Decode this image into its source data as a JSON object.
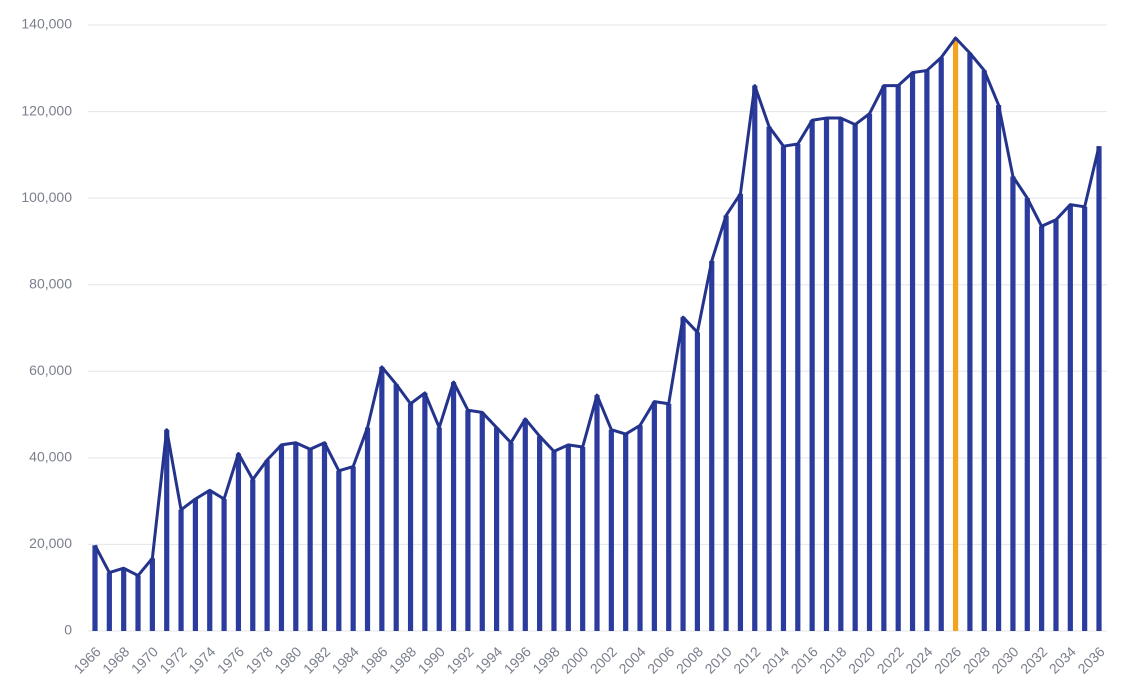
{
  "chart_data": {
    "type": "bar",
    "categories": [
      "1966",
      null,
      "1968",
      null,
      "1970",
      null,
      "1972",
      null,
      "1974",
      null,
      "1976",
      null,
      "1978",
      null,
      "1980",
      null,
      "1982",
      null,
      "1984",
      null,
      "1986",
      null,
      "1988",
      null,
      "1990",
      null,
      "1992",
      null,
      "1994",
      null,
      "1996",
      null,
      "1998",
      null,
      "2000",
      null,
      "2002",
      null,
      "2004",
      null,
      "2006",
      null,
      "2008",
      null,
      "2010",
      null,
      "2012",
      null,
      "2014",
      null,
      "2016",
      null,
      "2018",
      null,
      "2020",
      null,
      "2022",
      null,
      "2024",
      null,
      "2026",
      null,
      "2028",
      null,
      "2030",
      null,
      "2032",
      null,
      "2034",
      null,
      "2036"
    ],
    "values": [
      19800,
      13500,
      14500,
      12800,
      16800,
      46500,
      28000,
      30500,
      32500,
      30500,
      41000,
      35000,
      39500,
      43000,
      43500,
      42000,
      43500,
      37000,
      38000,
      47000,
      61000,
      57000,
      52500,
      55000,
      47000,
      57500,
      51000,
      50500,
      47000,
      43500,
      49000,
      45000,
      41500,
      43000,
      42500,
      54500,
      46500,
      45500,
      47500,
      53000,
      52500,
      72500,
      69000,
      85500,
      96000,
      101000,
      126000,
      116500,
      112000,
      112500,
      118000,
      118500,
      118500,
      117000,
      119500,
      126000,
      126000,
      129000,
      129500,
      132500,
      137000,
      133500,
      129500,
      121500,
      105000,
      100000,
      93500,
      95000,
      98500,
      98000,
      112000
    ],
    "color": "#2b3b9e",
    "line": true,
    "line_color": "#24348c",
    "highlight": {
      "category": "2026",
      "color": "#f5a21f"
    },
    "ylim": [
      0,
      140000
    ],
    "yticks": [
      0,
      {
        "value": 20000,
        "label": "20,000"
      },
      {
        "value": 40000,
        "label": "40,000"
      },
      {
        "value": 60000,
        "label": "60,000"
      },
      {
        "value": 80000,
        "label": "80,000"
      },
      {
        "value": 100000,
        "label": "100,000"
      },
      {
        "value": 120000,
        "label": "120,000"
      },
      {
        "value": 140000,
        "label": "140,000"
      }
    ],
    "grid": true
  }
}
